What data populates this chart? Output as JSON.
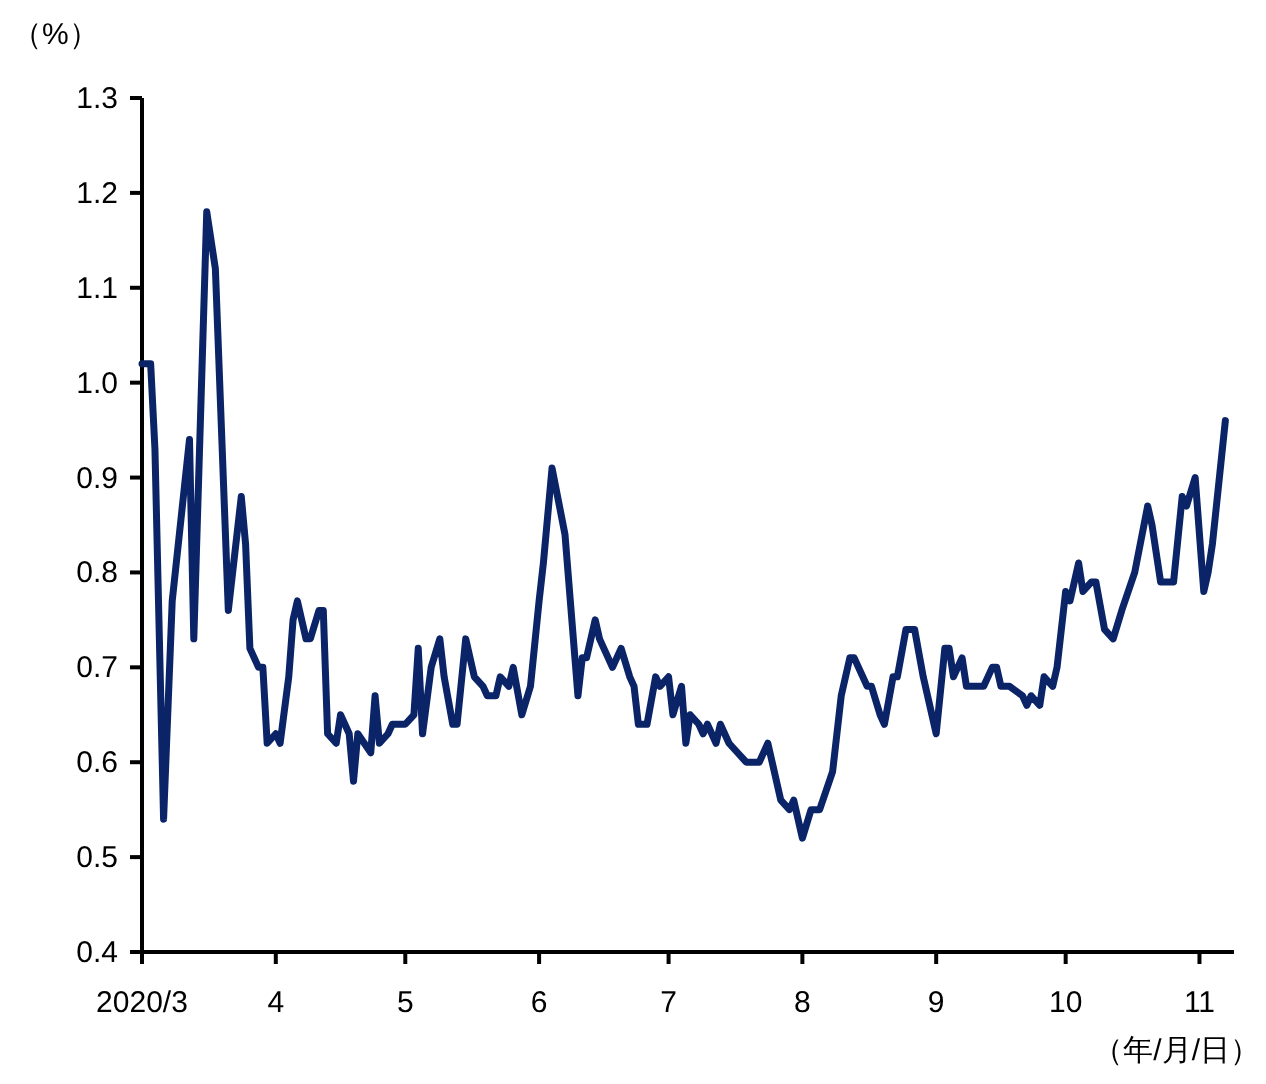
{
  "chart_data": {
    "type": "line",
    "ylabel": "（%）",
    "xlabel": "（年/月/日）",
    "x": [
      "2020-03-01",
      "2020-03-03",
      "2020-03-04",
      "2020-03-06",
      "2020-03-08",
      "2020-03-12",
      "2020-03-13",
      "2020-03-15",
      "2020-03-16",
      "2020-03-18",
      "2020-03-21",
      "2020-03-24",
      "2020-03-25",
      "2020-03-26",
      "2020-03-28",
      "2020-03-29",
      "2020-03-30",
      "2020-04-01",
      "2020-04-02",
      "2020-04-04",
      "2020-04-05",
      "2020-04-06",
      "2020-04-08",
      "2020-04-09",
      "2020-04-11",
      "2020-04-12",
      "2020-04-13",
      "2020-04-15",
      "2020-04-16",
      "2020-04-18",
      "2020-04-19",
      "2020-04-20",
      "2020-04-23",
      "2020-04-24",
      "2020-04-25",
      "2020-04-27",
      "2020-04-28",
      "2020-05-01",
      "2020-05-03",
      "2020-05-04",
      "2020-05-05",
      "2020-05-07",
      "2020-05-09",
      "2020-05-10",
      "2020-05-12",
      "2020-05-13",
      "2020-05-15",
      "2020-05-17",
      "2020-05-19",
      "2020-05-20",
      "2020-05-22",
      "2020-05-23",
      "2020-05-25",
      "2020-05-26",
      "2020-05-28",
      "2020-05-30",
      "2020-06-01",
      "2020-06-02",
      "2020-06-04",
      "2020-06-07",
      "2020-06-10",
      "2020-06-11",
      "2020-06-12",
      "2020-06-14",
      "2020-06-15",
      "2020-06-17",
      "2020-06-18",
      "2020-06-20",
      "2020-06-22",
      "2020-06-23",
      "2020-06-24",
      "2020-06-26",
      "2020-06-28",
      "2020-06-29",
      "2020-07-01",
      "2020-07-02",
      "2020-07-04",
      "2020-07-05",
      "2020-07-06",
      "2020-07-08",
      "2020-07-09",
      "2020-07-10",
      "2020-07-12",
      "2020-07-13",
      "2020-07-15",
      "2020-07-17",
      "2020-07-19",
      "2020-07-22",
      "2020-07-24",
      "2020-07-26",
      "2020-07-27",
      "2020-07-29",
      "2020-07-30",
      "2020-08-01",
      "2020-08-03",
      "2020-08-05",
      "2020-08-08",
      "2020-08-10",
      "2020-08-12",
      "2020-08-13",
      "2020-08-16",
      "2020-08-17",
      "2020-08-19",
      "2020-08-20",
      "2020-08-22",
      "2020-08-23",
      "2020-08-25",
      "2020-08-27",
      "2020-08-29",
      "2020-09-01",
      "2020-09-03",
      "2020-09-04",
      "2020-09-05",
      "2020-09-07",
      "2020-09-08",
      "2020-09-10",
      "2020-09-12",
      "2020-09-14",
      "2020-09-15",
      "2020-09-16",
      "2020-09-18",
      "2020-09-21",
      "2020-09-22",
      "2020-09-23",
      "2020-09-25",
      "2020-09-26",
      "2020-09-28",
      "2020-09-29",
      "2020-10-01",
      "2020-10-02",
      "2020-10-04",
      "2020-10-05",
      "2020-10-07",
      "2020-10-08",
      "2020-10-10",
      "2020-10-12",
      "2020-10-14",
      "2020-10-17",
      "2020-10-20",
      "2020-10-21",
      "2020-10-23",
      "2020-10-26",
      "2020-10-28",
      "2020-10-29",
      "2020-10-31",
      "2020-11-02",
      "2020-11-03",
      "2020-11-04",
      "2020-11-07"
    ],
    "series": [
      {
        "color": "#0a2467",
        "values": [
          1.02,
          1.02,
          0.93,
          0.54,
          0.77,
          0.94,
          0.73,
          1.03,
          1.18,
          1.12,
          0.76,
          0.88,
          0.83,
          0.72,
          0.7,
          0.7,
          0.62,
          0.63,
          0.62,
          0.69,
          0.75,
          0.77,
          0.73,
          0.73,
          0.76,
          0.76,
          0.63,
          0.62,
          0.65,
          0.63,
          0.58,
          0.63,
          0.61,
          0.67,
          0.62,
          0.63,
          0.64,
          0.64,
          0.65,
          0.72,
          0.63,
          0.7,
          0.73,
          0.69,
          0.64,
          0.64,
          0.73,
          0.69,
          0.68,
          0.67,
          0.67,
          0.69,
          0.68,
          0.7,
          0.65,
          0.68,
          0.77,
          0.81,
          0.91,
          0.84,
          0.67,
          0.71,
          0.71,
          0.75,
          0.73,
          0.71,
          0.7,
          0.72,
          0.69,
          0.68,
          0.64,
          0.64,
          0.69,
          0.68,
          0.69,
          0.65,
          0.68,
          0.62,
          0.65,
          0.64,
          0.63,
          0.64,
          0.62,
          0.64,
          0.62,
          0.61,
          0.6,
          0.6,
          0.62,
          0.58,
          0.56,
          0.55,
          0.56,
          0.52,
          0.55,
          0.55,
          0.59,
          0.67,
          0.71,
          0.71,
          0.68,
          0.68,
          0.65,
          0.64,
          0.69,
          0.69,
          0.74,
          0.74,
          0.69,
          0.63,
          0.72,
          0.72,
          0.69,
          0.71,
          0.68,
          0.68,
          0.68,
          0.7,
          0.7,
          0.68,
          0.68,
          0.67,
          0.66,
          0.67,
          0.66,
          0.69,
          0.68,
          0.7,
          0.78,
          0.77,
          0.81,
          0.78,
          0.79,
          0.79,
          0.74,
          0.73,
          0.76,
          0.8,
          0.87,
          0.85,
          0.79,
          0.79,
          0.88,
          0.87,
          0.9,
          0.78,
          0.8,
          0.83,
          0.96
        ]
      }
    ],
    "xlim": [
      "2020-03-01",
      "2020-11-09"
    ],
    "xticks": [
      {
        "value": "2020-03-01",
        "label": "2020/3"
      },
      {
        "value": "2020-04-01",
        "label": "4"
      },
      {
        "value": "2020-05-01",
        "label": "5"
      },
      {
        "value": "2020-06-01",
        "label": "6"
      },
      {
        "value": "2020-07-01",
        "label": "7"
      },
      {
        "value": "2020-08-01",
        "label": "8"
      },
      {
        "value": "2020-09-01",
        "label": "9"
      },
      {
        "value": "2020-10-01",
        "label": "10"
      },
      {
        "value": "2020-11-01",
        "label": "11"
      }
    ],
    "ylim": [
      0.4,
      1.3
    ],
    "yticks": [
      {
        "value": 0.4,
        "label": "0.4"
      },
      {
        "value": 0.5,
        "label": "0.5"
      },
      {
        "value": 0.6,
        "label": "0.6"
      },
      {
        "value": 0.7,
        "label": "0.7"
      },
      {
        "value": 0.8,
        "label": "0.8"
      },
      {
        "value": 0.9,
        "label": "0.9"
      },
      {
        "value": 1.0,
        "label": "1.0"
      },
      {
        "value": 1.1,
        "label": "1.1"
      },
      {
        "value": 1.2,
        "label": "1.2"
      },
      {
        "value": 1.3,
        "label": "1.3"
      }
    ],
    "grid": false,
    "marker": "none",
    "line_style": "solid"
  }
}
